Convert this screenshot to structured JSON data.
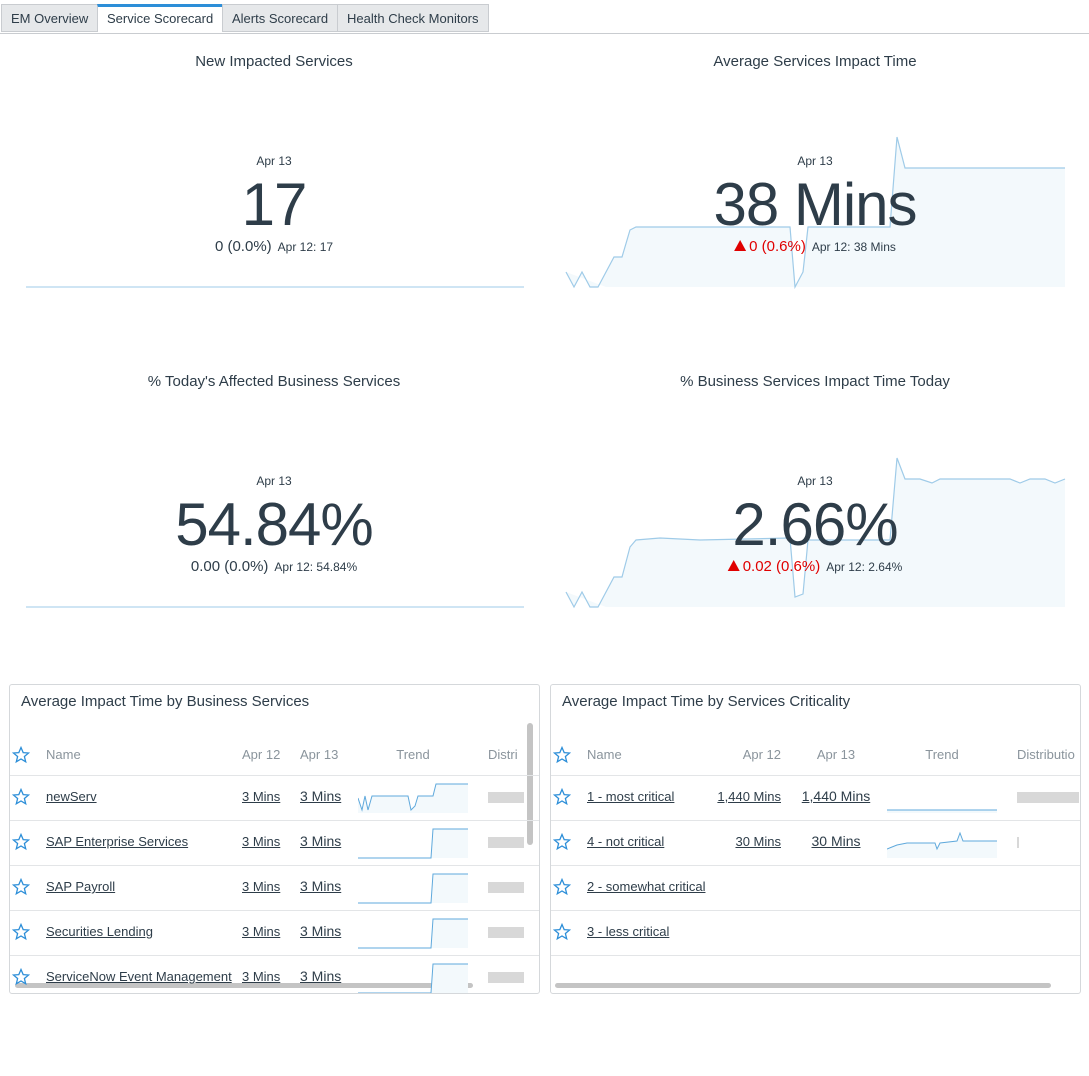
{
  "tabs": [
    "EM Overview",
    "Service Scorecard",
    "Alerts Scorecard",
    "Health Check Monitors"
  ],
  "scorecards": [
    {
      "title": "New Impacted Services",
      "date": "Apr 13",
      "value": "17",
      "change": "0 (0.0%)",
      "compare": "Apr 12: 17"
    },
    {
      "title": "Average Services Impact Time",
      "date": "Apr 13",
      "value": "38 Mins",
      "change": "0 (0.6%)",
      "compare": "Apr 12: 38 Mins"
    },
    {
      "title": "% Today's Affected Business Services",
      "date": "Apr 13",
      "value": "54.84%",
      "change": "0.00 (0.0%)",
      "compare": "Apr 12: 54.84%"
    },
    {
      "title": "% Business Services Impact Time Today",
      "date": "Apr 13",
      "value": "2.66%",
      "change": "0.02 (0.6%)",
      "compare": "Apr 12: 2.64%"
    }
  ],
  "tables": [
    {
      "title": "Average Impact Time by Business Services",
      "columns": [
        "Name",
        "Apr 12",
        "Apr 13",
        "Trend",
        "Distri"
      ],
      "rows": [
        [
          "newServ",
          "3 Mins",
          "3 Mins"
        ],
        [
          "SAP Enterprise Services",
          "3 Mins",
          "3 Mins"
        ],
        [
          "SAP Payroll",
          "3 Mins",
          "3 Mins"
        ],
        [
          "Securities Lending",
          "3 Mins",
          "3 Mins"
        ],
        [
          "ServiceNow Event Management",
          "3 Mins",
          "3 Mins"
        ]
      ]
    },
    {
      "title": "Average Impact Time by Services Criticality",
      "columns": [
        "Name",
        "Apr 12",
        "Apr 13",
        "Trend",
        "Distributio"
      ],
      "rows": [
        [
          "1 - most critical",
          "1,440 Mins",
          "1,440 Mins"
        ],
        [
          "4 - not critical",
          "30 Mins",
          "30 Mins"
        ],
        [
          "2 - somewhat critical"
        ],
        [
          "3 - less critical"
        ]
      ]
    }
  ]
}
